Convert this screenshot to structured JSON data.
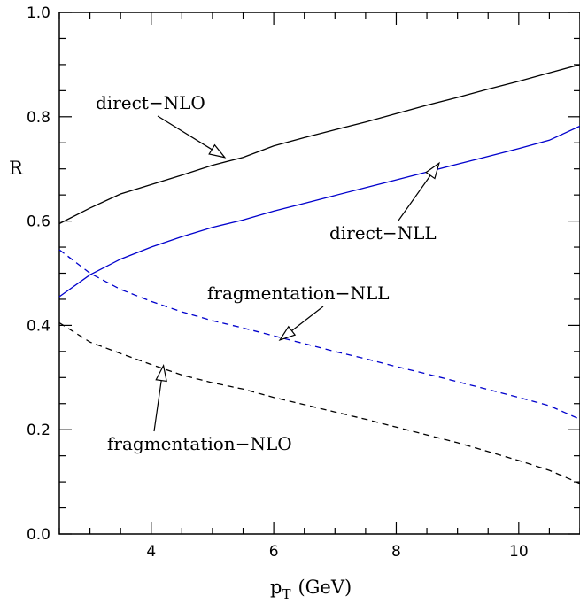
{
  "chart_data": {
    "type": "line",
    "xlabel_main": "p",
    "xlabel_sub": "T",
    "xlabel_unit": "(GeV)",
    "ylabel": "R",
    "xlim": [
      2.5,
      11
    ],
    "ylim": [
      0,
      1
    ],
    "x_ticks": [
      4,
      6,
      8,
      10
    ],
    "x_tick_labels": [
      "4",
      "6",
      "8",
      "10"
    ],
    "y_ticks": [
      0,
      0.2,
      0.4,
      0.6,
      0.8,
      1.0
    ],
    "y_tick_labels": [
      "0.0",
      "0.2",
      "0.4",
      "0.6",
      "0.8",
      "1.0"
    ],
    "grid": false,
    "series": [
      {
        "name": "direct-NLO",
        "color": "#000000",
        "dash": "solid",
        "x": [
          2.5,
          3.0,
          3.5,
          4.0,
          4.5,
          5.0,
          5.5,
          6.0,
          6.5,
          7.0,
          7.5,
          8.0,
          8.5,
          9.0,
          9.5,
          10.0,
          10.5,
          11.0
        ],
        "y": [
          0.595,
          0.625,
          0.652,
          0.67,
          0.688,
          0.707,
          0.722,
          0.744,
          0.76,
          0.775,
          0.79,
          0.806,
          0.822,
          0.837,
          0.853,
          0.868,
          0.884,
          0.9
        ]
      },
      {
        "name": "direct-NLL",
        "color": "#0000cc",
        "dash": "solid",
        "x": [
          2.5,
          3.0,
          3.5,
          4.0,
          4.5,
          5.0,
          5.5,
          6.0,
          6.5,
          7.0,
          7.5,
          8.0,
          8.5,
          9.0,
          9.5,
          10.0,
          10.5,
          11.0
        ],
        "y": [
          0.455,
          0.497,
          0.527,
          0.55,
          0.57,
          0.588,
          0.602,
          0.619,
          0.634,
          0.649,
          0.664,
          0.679,
          0.694,
          0.709,
          0.724,
          0.739,
          0.755,
          0.782
        ]
      },
      {
        "name": "fragmentation-NLL",
        "color": "#0000cc",
        "dash": "dashed",
        "x": [
          2.5,
          3.0,
          3.5,
          4.0,
          4.5,
          5.0,
          5.5,
          6.0,
          6.5,
          7.0,
          7.5,
          8.0,
          8.5,
          9.0,
          9.5,
          10.0,
          10.5,
          11.0
        ],
        "y": [
          0.545,
          0.5,
          0.469,
          0.446,
          0.426,
          0.409,
          0.395,
          0.38,
          0.365,
          0.35,
          0.336,
          0.321,
          0.307,
          0.292,
          0.277,
          0.262,
          0.246,
          0.22
        ]
      },
      {
        "name": "fragmentation-NLO",
        "color": "#000000",
        "dash": "dashed",
        "x": [
          2.5,
          3.0,
          3.5,
          4.0,
          4.5,
          5.0,
          5.5,
          6.0,
          6.5,
          7.0,
          7.5,
          8.0,
          8.5,
          9.0,
          9.5,
          10.0,
          10.5,
          11.0
        ],
        "y": [
          0.405,
          0.368,
          0.346,
          0.325,
          0.305,
          0.29,
          0.278,
          0.262,
          0.248,
          0.234,
          0.22,
          0.205,
          0.19,
          0.175,
          0.158,
          0.141,
          0.122,
          0.097
        ]
      }
    ],
    "annotations": [
      {
        "text": "direct−NLO",
        "target_x": 5.2,
        "target_y": 0.722
      },
      {
        "text": "direct−NLL",
        "target_x": 8.7,
        "target_y": 0.711
      },
      {
        "text": "fragmentation−NLL",
        "target_x": 6.1,
        "target_y": 0.372
      },
      {
        "text": "fragmentation−NLO",
        "target_x": 4.2,
        "target_y": 0.323
      }
    ]
  }
}
